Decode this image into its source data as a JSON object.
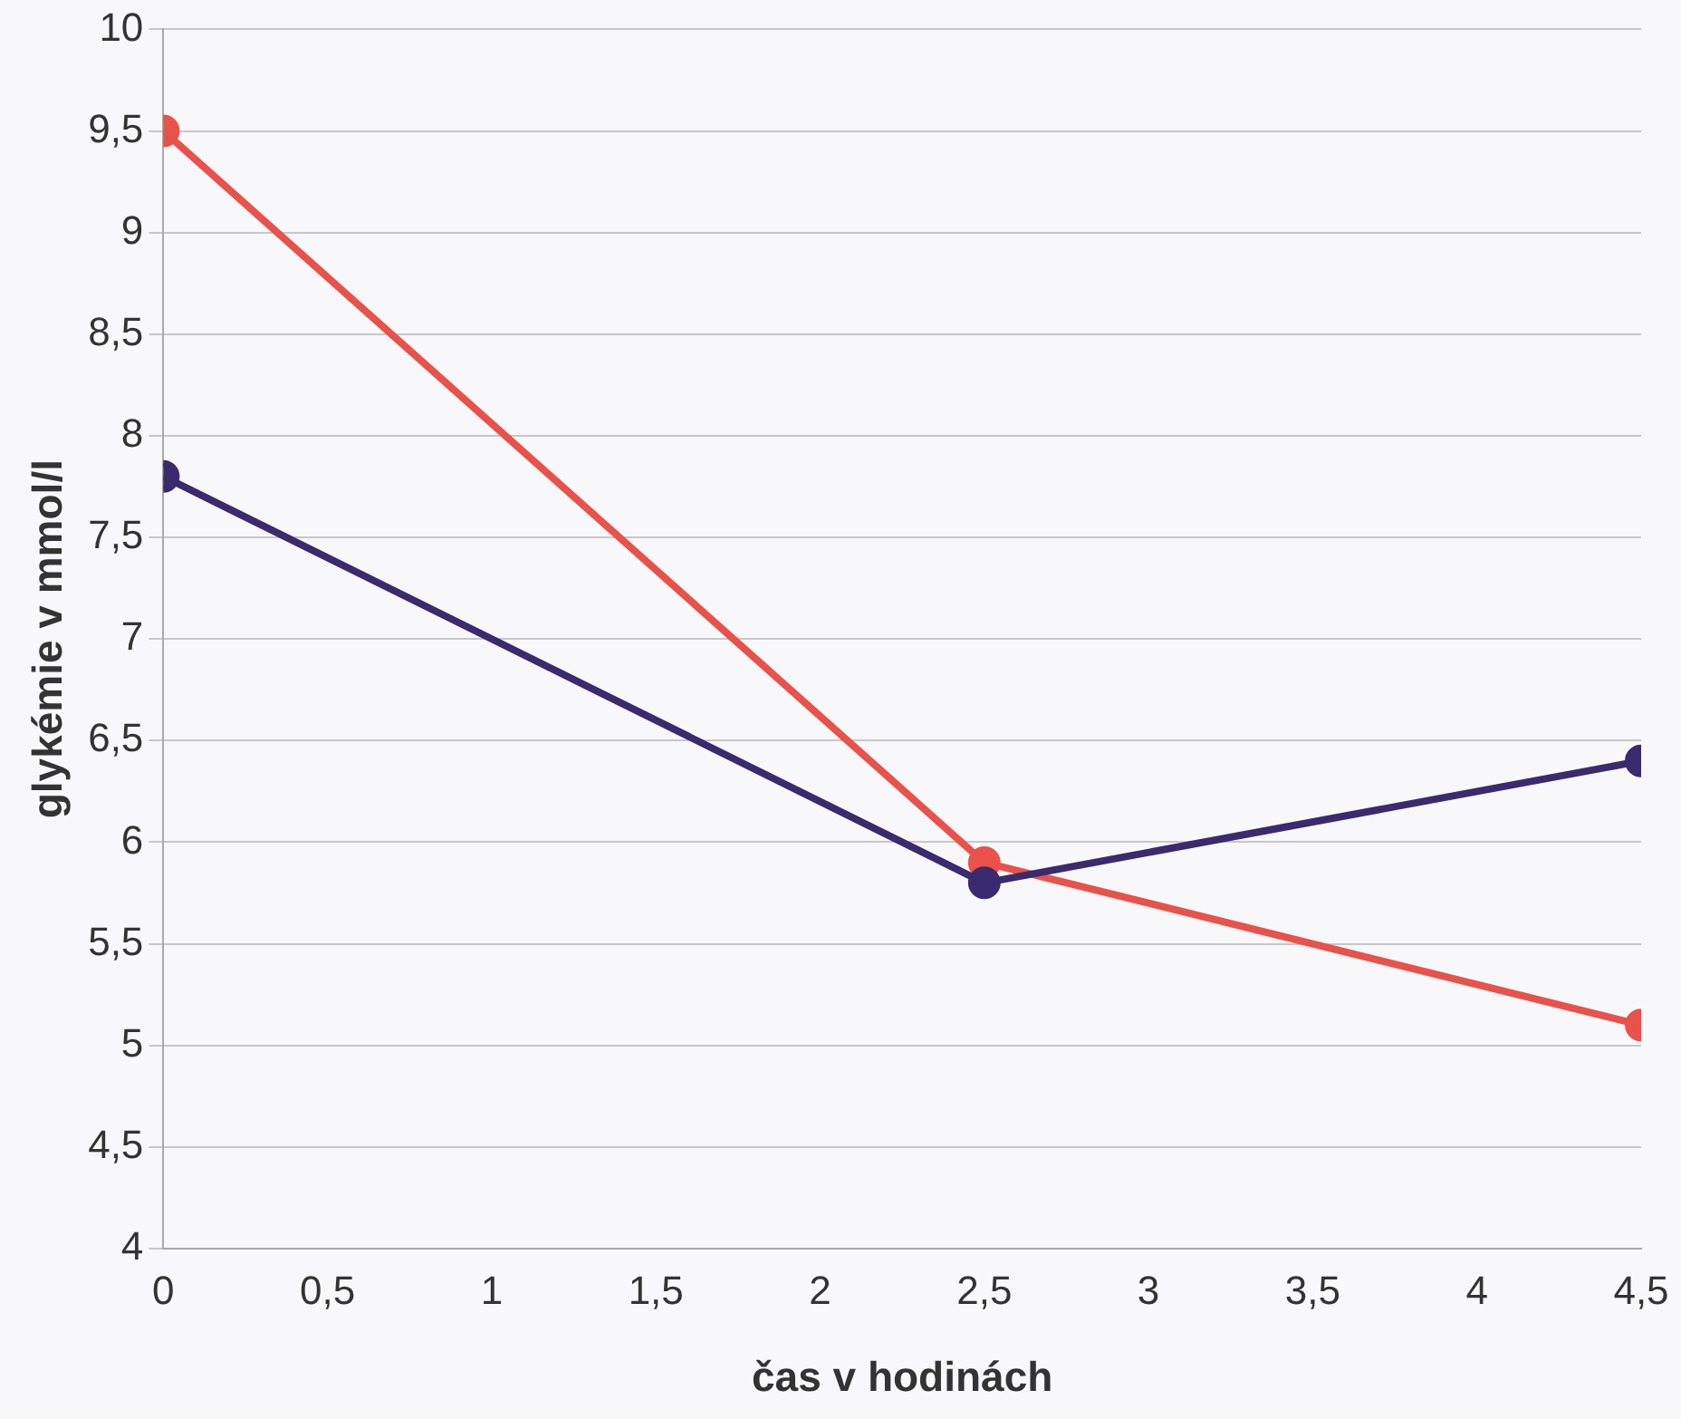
{
  "chart_data": {
    "type": "line",
    "xlabel": "čas v hodinách",
    "ylabel": "glykémie v mmol/l",
    "xlim": [
      0,
      4.5
    ],
    "xticks": [
      {
        "value": 0,
        "label": "0"
      },
      {
        "value": 0.5,
        "label": "0,5"
      },
      {
        "value": 1,
        "label": "1"
      },
      {
        "value": 1.5,
        "label": "1,5"
      },
      {
        "value": 2,
        "label": "2"
      },
      {
        "value": 2.5,
        "label": "2,5"
      },
      {
        "value": 3,
        "label": "3"
      },
      {
        "value": 3.5,
        "label": "3,5"
      },
      {
        "value": 4,
        "label": "4"
      },
      {
        "value": 4.5,
        "label": "4,5"
      }
    ],
    "ylim": [
      4,
      10
    ],
    "yticks": [
      {
        "value": 4,
        "label": "4"
      },
      {
        "value": 4.5,
        "label": "4,5"
      },
      {
        "value": 5,
        "label": "5"
      },
      {
        "value": 5.5,
        "label": "5,5"
      },
      {
        "value": 6,
        "label": "6"
      },
      {
        "value": 6.5,
        "label": "6,5"
      },
      {
        "value": 7,
        "label": "7"
      },
      {
        "value": 7.5,
        "label": "7,5"
      },
      {
        "value": 8,
        "label": "8"
      },
      {
        "value": 8.5,
        "label": "8,5"
      },
      {
        "value": 9,
        "label": "9"
      },
      {
        "value": 9.5,
        "label": "9,5"
      },
      {
        "value": 10,
        "label": "10"
      }
    ],
    "x": [
      0,
      2.5,
      4.5
    ],
    "series": [
      {
        "color": "#3a2a6e",
        "values": [
          7.8,
          5.8,
          6.4
        ]
      },
      {
        "color": "#e8524a",
        "values": [
          9.5,
          5.9,
          5.1
        ]
      }
    ],
    "grid": "y",
    "legend": false,
    "marker": "circle",
    "line_style": "solid"
  }
}
